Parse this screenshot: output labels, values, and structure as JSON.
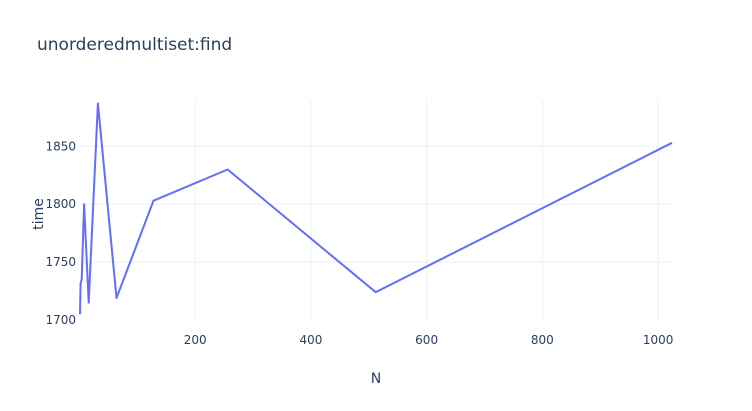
{
  "chart_data": {
    "type": "line",
    "title": "unorderedmultiset:find",
    "xlabel": "N",
    "ylabel": "time",
    "xlim": [
      1,
      1024
    ],
    "ylim": [
      1700,
      1890
    ],
    "x_ticks": [
      200,
      400,
      600,
      800,
      1000
    ],
    "y_ticks": [
      1700,
      1750,
      1800,
      1850
    ],
    "grid": true,
    "colors": {
      "series": "#636efa",
      "grid": "#ebf0f8",
      "text": "#2a3f5f"
    },
    "series": [
      {
        "x": [
          1,
          2,
          4,
          8,
          16,
          32,
          64,
          128,
          256,
          512,
          1024
        ],
        "y": [
          1705,
          1732,
          1735,
          1800,
          1715,
          1887,
          1719,
          1803,
          1830,
          1724,
          1853
        ]
      }
    ]
  }
}
